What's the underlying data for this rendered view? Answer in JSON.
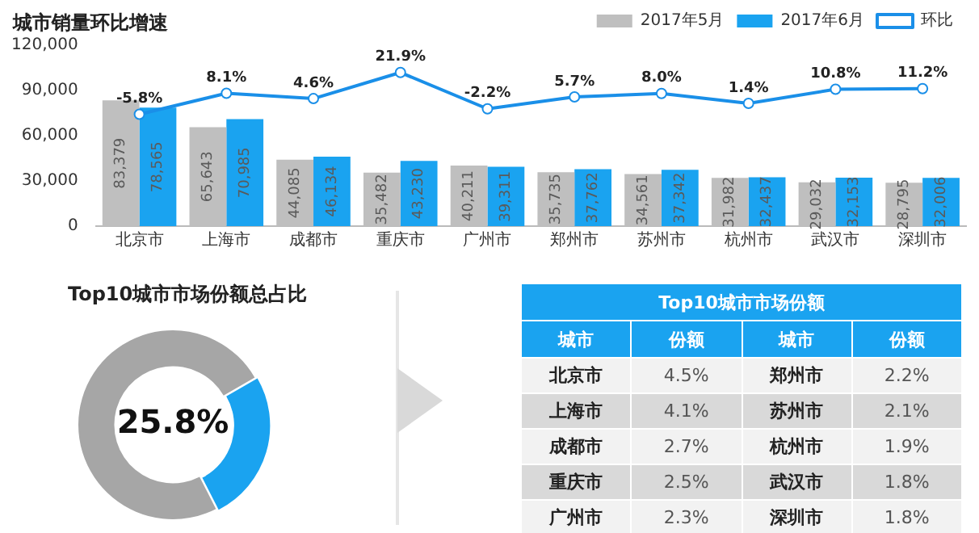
{
  "chart_data": [
    {
      "type": "bar",
      "title": "城市销量环比增速",
      "categories": [
        "北京市",
        "上海市",
        "成都市",
        "重庆市",
        "广州市",
        "郑州市",
        "苏州市",
        "杭州市",
        "武汉市",
        "深圳市"
      ],
      "series": [
        {
          "name": "2017年5月",
          "color": "#bfbfbf",
          "values": [
            83379,
            65643,
            44085,
            35482,
            40211,
            35735,
            34561,
            31982,
            29032,
            28795
          ],
          "value_labels": [
            "83,379",
            "65,643",
            "44,085",
            "35,482",
            "40,211",
            "35,735",
            "34,561",
            "31,982",
            "29,032",
            "28,795"
          ]
        },
        {
          "name": "2017年6月",
          "color": "#1aa3f0",
          "values": [
            78565,
            70985,
            46134,
            43230,
            39311,
            37762,
            37342,
            32437,
            32153,
            32006
          ],
          "value_labels": [
            "78,565",
            "70,985",
            "46,134",
            "43,230",
            "39,311",
            "37,762",
            "37,342",
            "32,437",
            "32,153",
            "32,006"
          ]
        },
        {
          "name": "环比",
          "type": "line",
          "axis": "y2",
          "color": "#1a8fe8",
          "values": [
            -5.8,
            8.1,
            4.6,
            21.9,
            -2.2,
            5.7,
            8.0,
            1.4,
            10.8,
            11.2
          ],
          "value_labels": [
            "-5.8%",
            "8.1%",
            "4.6%",
            "21.9%",
            "-2.2%",
            "5.7%",
            "8.0%",
            "1.4%",
            "10.8%",
            "11.2%"
          ]
        }
      ],
      "ylim": [
        0,
        120000
      ],
      "yticks": [
        0,
        {
          "value": 30000,
          "label": "30,000"
        },
        {
          "value": 60000,
          "label": "60,000"
        },
        {
          "value": 90000,
          "label": "90,000"
        },
        {
          "value": 120000,
          "label": "120,000"
        }
      ],
      "marker": "circle",
      "legend": "top right"
    },
    {
      "type": "donut",
      "title": "Top10城市市场份额总占比",
      "categories": [
        null,
        null
      ],
      "values": [
        25.8,
        74.2
      ],
      "colors": [
        "#1aa3f0",
        "#a6a6a6"
      ],
      "annotations": [
        "25.8%"
      ]
    },
    {
      "type": "other",
      "title": "Top10城市市场份额",
      "annotations": [
        "城市",
        "份额"
      ],
      "categories": [
        "北京市",
        "上海市",
        "成都市",
        "重庆市",
        "广州市",
        "郑州市",
        "苏州市",
        "杭州市",
        "武汉市",
        "深圳市"
      ],
      "values": [
        4.5,
        4.1,
        2.7,
        2.5,
        2.3,
        2.2,
        2.1,
        1.9,
        1.8,
        1.8
      ],
      "value_labels": [
        "4.5%",
        "4.1%",
        "2.7%",
        "2.5%",
        "2.3%",
        "2.2%",
        "2.1%",
        "1.9%",
        "1.8%",
        "1.8%"
      ]
    }
  ]
}
